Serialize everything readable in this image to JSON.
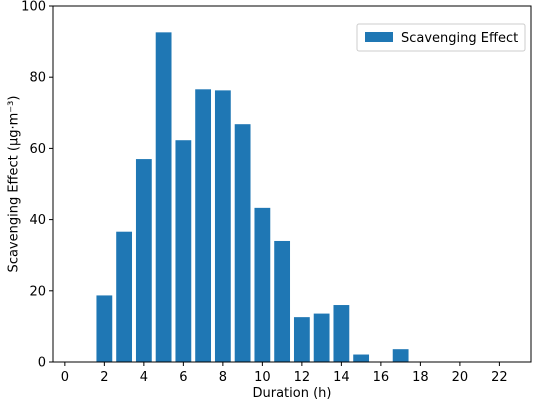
{
  "chart_data": {
    "type": "bar",
    "x": [
      2,
      3,
      4,
      5,
      6,
      7,
      8,
      9,
      10,
      11,
      12,
      13,
      14,
      15,
      16,
      17
    ],
    "series": [
      {
        "name": "Scavenging Effect",
        "values": [
          18.7,
          36.6,
          57.0,
          92.6,
          62.3,
          76.6,
          76.3,
          66.8,
          43.3,
          34.0,
          12.6,
          13.6,
          16.0,
          2.1,
          0,
          3.6
        ],
        "color": "#1f77b4"
      }
    ],
    "xlabel": "Duration (h)",
    "ylabel": "Scavenging Effect (μg·m⁻³)",
    "xlim": [
      -0.6,
      23.6
    ],
    "ylim": [
      0,
      100
    ],
    "xticks": [
      0,
      2,
      4,
      6,
      8,
      10,
      12,
      14,
      16,
      18,
      20,
      22
    ],
    "yticks": [
      0,
      20,
      40,
      60,
      80,
      100
    ],
    "legend_position": "top-right",
    "grid": false
  }
}
